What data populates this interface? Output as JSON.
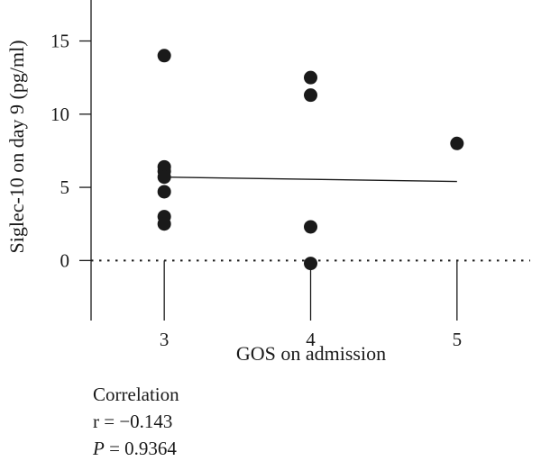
{
  "chart_data": {
    "type": "scatter",
    "xlabel": "GOS on admission",
    "ylabel": "Siglec-10 on day 9 (pg/ml)",
    "xlim": [
      2.5,
      5.5
    ],
    "ylim": [
      -4.1,
      17.8
    ],
    "xticks": [
      "3",
      "4",
      "5"
    ],
    "yticks": [
      "0",
      "5",
      "10",
      "15"
    ],
    "grid": false,
    "points": [
      {
        "x": 3,
        "y": 14.0
      },
      {
        "x": 3,
        "y": 6.4
      },
      {
        "x": 3,
        "y": 6.1
      },
      {
        "x": 3,
        "y": 5.7
      },
      {
        "x": 3,
        "y": 4.7
      },
      {
        "x": 3,
        "y": 3.0
      },
      {
        "x": 3,
        "y": 2.5
      },
      {
        "x": 4,
        "y": 12.5
      },
      {
        "x": 4,
        "y": 11.3
      },
      {
        "x": 4,
        "y": 2.3
      },
      {
        "x": 4,
        "y": -0.2
      },
      {
        "x": 5,
        "y": 8.0
      }
    ],
    "regression_line": {
      "x": [
        3,
        5
      ],
      "y": [
        5.7,
        5.4
      ]
    },
    "zero_reference_line": 0
  },
  "stats": {
    "heading": "Correlation",
    "r_text": "r = −0.143",
    "p_symbol": "P",
    "p_value_text": " = 0.9364"
  },
  "colors": {
    "points": "#1a1a1a",
    "axis": "#1a1a1a"
  }
}
